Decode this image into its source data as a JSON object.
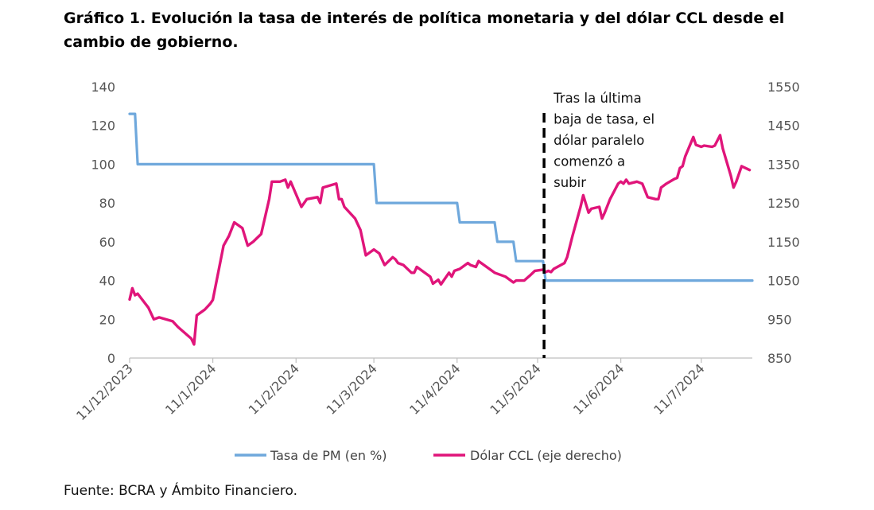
{
  "title": "Gráfico 1. Evolución la tasa de interés de política monetaria y del dólar CCL desde el cambio de gobierno.",
  "source": "Fuente: BCRA y Ámbito Financiero.",
  "colors": {
    "series1": "#6fa8dc",
    "series2": "#e0157a",
    "axis": "#bfbfbf",
    "text": "#555555"
  },
  "chart_data": {
    "type": "line",
    "x_ticks": [
      "11/12/2023",
      "11/1/2024",
      "11/2/2024",
      "11/3/2024",
      "11/4/2024",
      "11/5/2024",
      "11/6/2024",
      "11/7/2024"
    ],
    "y_left_ticks": [
      "0",
      "20",
      "40",
      "60",
      "80",
      "100",
      "120",
      "140"
    ],
    "y_right_ticks": [
      "850",
      "950",
      "1050",
      "1150",
      "1250",
      "1350",
      "1450",
      "1550"
    ],
    "ylim_left": [
      0,
      140
    ],
    "ylim_right": [
      850,
      1550
    ],
    "grid": false,
    "legend_position": "bottom",
    "annotation": {
      "lines": [
        "Tras la última",
        "baja de tasa, el",
        "dólar paralelo",
        "comenzó a",
        "subir"
      ],
      "x": "14/5/2024"
    },
    "series": [
      {
        "name": "Tasa de PM (en %)",
        "axis": "left",
        "color": "#6fa8dc",
        "points": [
          [
            "2023-12-11",
            126
          ],
          [
            "2023-12-12",
            126
          ],
          [
            "2023-12-13",
            126
          ],
          [
            "2023-12-14",
            100
          ],
          [
            "2024-03-11",
            100
          ],
          [
            "2024-03-12",
            80
          ],
          [
            "2024-04-11",
            80
          ],
          [
            "2024-04-12",
            70
          ],
          [
            "2024-04-25",
            70
          ],
          [
            "2024-04-26",
            60
          ],
          [
            "2024-05-02",
            60
          ],
          [
            "2024-05-03",
            50
          ],
          [
            "2024-05-13",
            50
          ],
          [
            "2024-05-14",
            40
          ],
          [
            "2024-07-30",
            40
          ]
        ]
      },
      {
        "name": "Dólar CCL (eje derecho)",
        "axis": "right",
        "color": "#e0157a",
        "points": [
          [
            "2023-12-11",
            1001
          ],
          [
            "2023-12-12",
            1030
          ],
          [
            "2023-12-13",
            1012
          ],
          [
            "2023-12-14",
            1016
          ],
          [
            "2023-12-18",
            980
          ],
          [
            "2023-12-20",
            950
          ],
          [
            "2023-12-22",
            955
          ],
          [
            "2023-12-27",
            945
          ],
          [
            "2023-12-29",
            930
          ],
          [
            "2024-01-03",
            900
          ],
          [
            "2024-01-04",
            885
          ],
          [
            "2024-01-05",
            960
          ],
          [
            "2024-01-08",
            975
          ],
          [
            "2024-01-10",
            990
          ],
          [
            "2024-01-11",
            1000
          ],
          [
            "2024-01-15",
            1140
          ],
          [
            "2024-01-17",
            1165
          ],
          [
            "2024-01-19",
            1200
          ],
          [
            "2024-01-22",
            1185
          ],
          [
            "2024-01-24",
            1140
          ],
          [
            "2024-01-26",
            1150
          ],
          [
            "2024-01-29",
            1170
          ],
          [
            "2024-02-01",
            1260
          ],
          [
            "2024-02-02",
            1305
          ],
          [
            "2024-02-05",
            1305
          ],
          [
            "2024-02-07",
            1310
          ],
          [
            "2024-02-08",
            1290
          ],
          [
            "2024-02-09",
            1305
          ],
          [
            "2024-02-13",
            1240
          ],
          [
            "2024-02-15",
            1260
          ],
          [
            "2024-02-19",
            1265
          ],
          [
            "2024-02-20",
            1250
          ],
          [
            "2024-02-21",
            1290
          ],
          [
            "2024-02-26",
            1300
          ],
          [
            "2024-02-27",
            1260
          ],
          [
            "2024-02-28",
            1260
          ],
          [
            "2024-02-29",
            1240
          ],
          [
            "2024-03-04",
            1210
          ],
          [
            "2024-03-06",
            1180
          ],
          [
            "2024-03-08",
            1115
          ],
          [
            "2024-03-11",
            1130
          ],
          [
            "2024-03-13",
            1120
          ],
          [
            "2024-03-15",
            1090
          ],
          [
            "2024-03-18",
            1110
          ],
          [
            "2024-03-19",
            1105
          ],
          [
            "2024-03-20",
            1095
          ],
          [
            "2024-03-22",
            1090
          ],
          [
            "2024-03-25",
            1070
          ],
          [
            "2024-03-26",
            1070
          ],
          [
            "2024-03-27",
            1085
          ],
          [
            "2024-04-01",
            1060
          ],
          [
            "2024-04-02",
            1042
          ],
          [
            "2024-04-04",
            1052
          ],
          [
            "2024-04-05",
            1040
          ],
          [
            "2024-04-08",
            1070
          ],
          [
            "2024-04-09",
            1060
          ],
          [
            "2024-04-10",
            1075
          ],
          [
            "2024-04-12",
            1080
          ],
          [
            "2024-04-15",
            1095
          ],
          [
            "2024-04-16",
            1090
          ],
          [
            "2024-04-18",
            1085
          ],
          [
            "2024-04-19",
            1100
          ],
          [
            "2024-04-22",
            1085
          ],
          [
            "2024-04-25",
            1070
          ],
          [
            "2024-04-29",
            1060
          ],
          [
            "2024-04-30",
            1055
          ],
          [
            "2024-05-02",
            1045
          ],
          [
            "2024-05-03",
            1050
          ],
          [
            "2024-05-06",
            1050
          ],
          [
            "2024-05-08",
            1062
          ],
          [
            "2024-05-10",
            1075
          ],
          [
            "2024-05-13",
            1078
          ],
          [
            "2024-05-14",
            1072
          ],
          [
            "2024-05-15",
            1075
          ],
          [
            "2024-05-16",
            1072
          ],
          [
            "2024-05-17",
            1080
          ],
          [
            "2024-05-21",
            1095
          ],
          [
            "2024-05-22",
            1110
          ],
          [
            "2024-05-24",
            1165
          ],
          [
            "2024-05-27",
            1240
          ],
          [
            "2024-05-28",
            1270
          ],
          [
            "2024-05-30",
            1225
          ],
          [
            "2024-05-31",
            1235
          ],
          [
            "2024-06-03",
            1240
          ],
          [
            "2024-06-04",
            1210
          ],
          [
            "2024-06-05",
            1225
          ],
          [
            "2024-06-07",
            1260
          ],
          [
            "2024-06-10",
            1300
          ],
          [
            "2024-06-11",
            1305
          ],
          [
            "2024-06-12",
            1300
          ],
          [
            "2024-06-13",
            1310
          ],
          [
            "2024-06-14",
            1300
          ],
          [
            "2024-06-17",
            1305
          ],
          [
            "2024-06-19",
            1300
          ],
          [
            "2024-06-21",
            1265
          ],
          [
            "2024-06-24",
            1260
          ],
          [
            "2024-06-25",
            1260
          ],
          [
            "2024-06-26",
            1290
          ],
          [
            "2024-06-28",
            1300
          ],
          [
            "2024-07-01",
            1312
          ],
          [
            "2024-07-02",
            1315
          ],
          [
            "2024-07-03",
            1340
          ],
          [
            "2024-07-04",
            1345
          ],
          [
            "2024-07-05",
            1370
          ],
          [
            "2024-07-08",
            1420
          ],
          [
            "2024-07-09",
            1400
          ],
          [
            "2024-07-11",
            1395
          ],
          [
            "2024-07-12",
            1398
          ],
          [
            "2024-07-15",
            1395
          ],
          [
            "2024-07-16",
            1398
          ],
          [
            "2024-07-18",
            1425
          ],
          [
            "2024-07-19",
            1390
          ],
          [
            "2024-07-22",
            1320
          ],
          [
            "2024-07-23",
            1290
          ],
          [
            "2024-07-24",
            1305
          ],
          [
            "2024-07-26",
            1345
          ],
          [
            "2024-07-29",
            1335
          ]
        ]
      }
    ]
  }
}
